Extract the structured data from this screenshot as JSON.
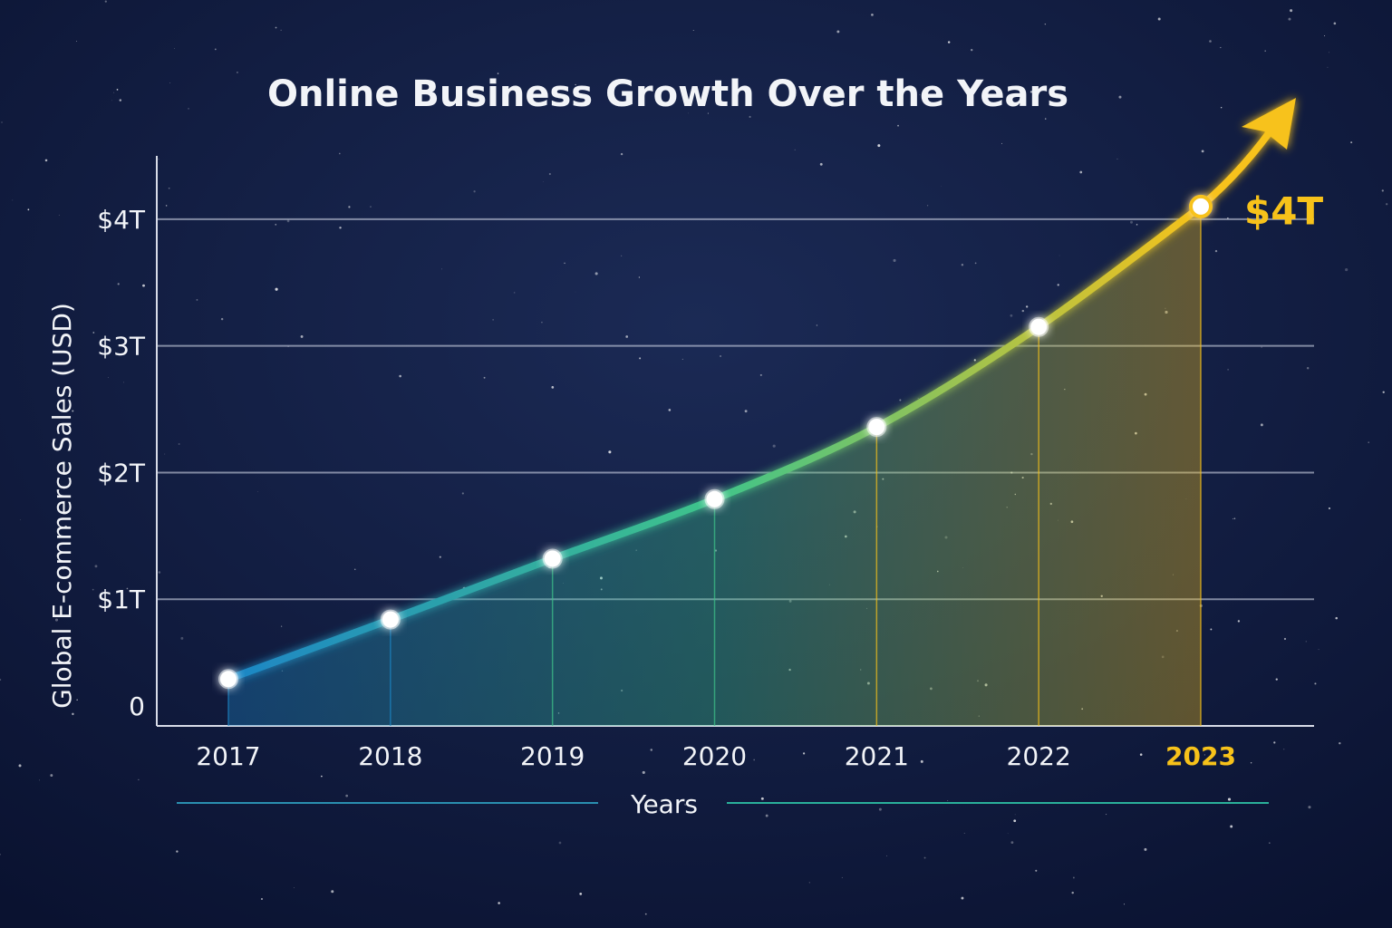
{
  "chart_data": {
    "type": "line",
    "title": "Online Business Growth Over the Years",
    "x_label": "Years",
    "y_label": "Global E-commerce Sales (USD)",
    "categories": [
      "2017",
      "2018",
      "2019",
      "2020",
      "2021",
      "2022",
      "2023"
    ],
    "values": [
      0.37,
      0.84,
      1.32,
      1.79,
      2.36,
      3.15,
      4.1
    ],
    "value_labels": [
      null,
      null,
      null,
      null,
      null,
      null,
      "$4T"
    ],
    "gradient": [
      "#1d86c6",
      "#3fc48a",
      "#f7c21a"
    ],
    "accent_color": "#f7c21a",
    "ylim": [
      0,
      4.5
    ],
    "yticks": [
      0,
      {
        "value": 1,
        "label": "$1T"
      },
      {
        "value": 2,
        "label": "$2T"
      },
      {
        "value": 3,
        "label": "$3T"
      },
      {
        "value": 4,
        "label": "$4T"
      }
    ],
    "grid": true
  }
}
